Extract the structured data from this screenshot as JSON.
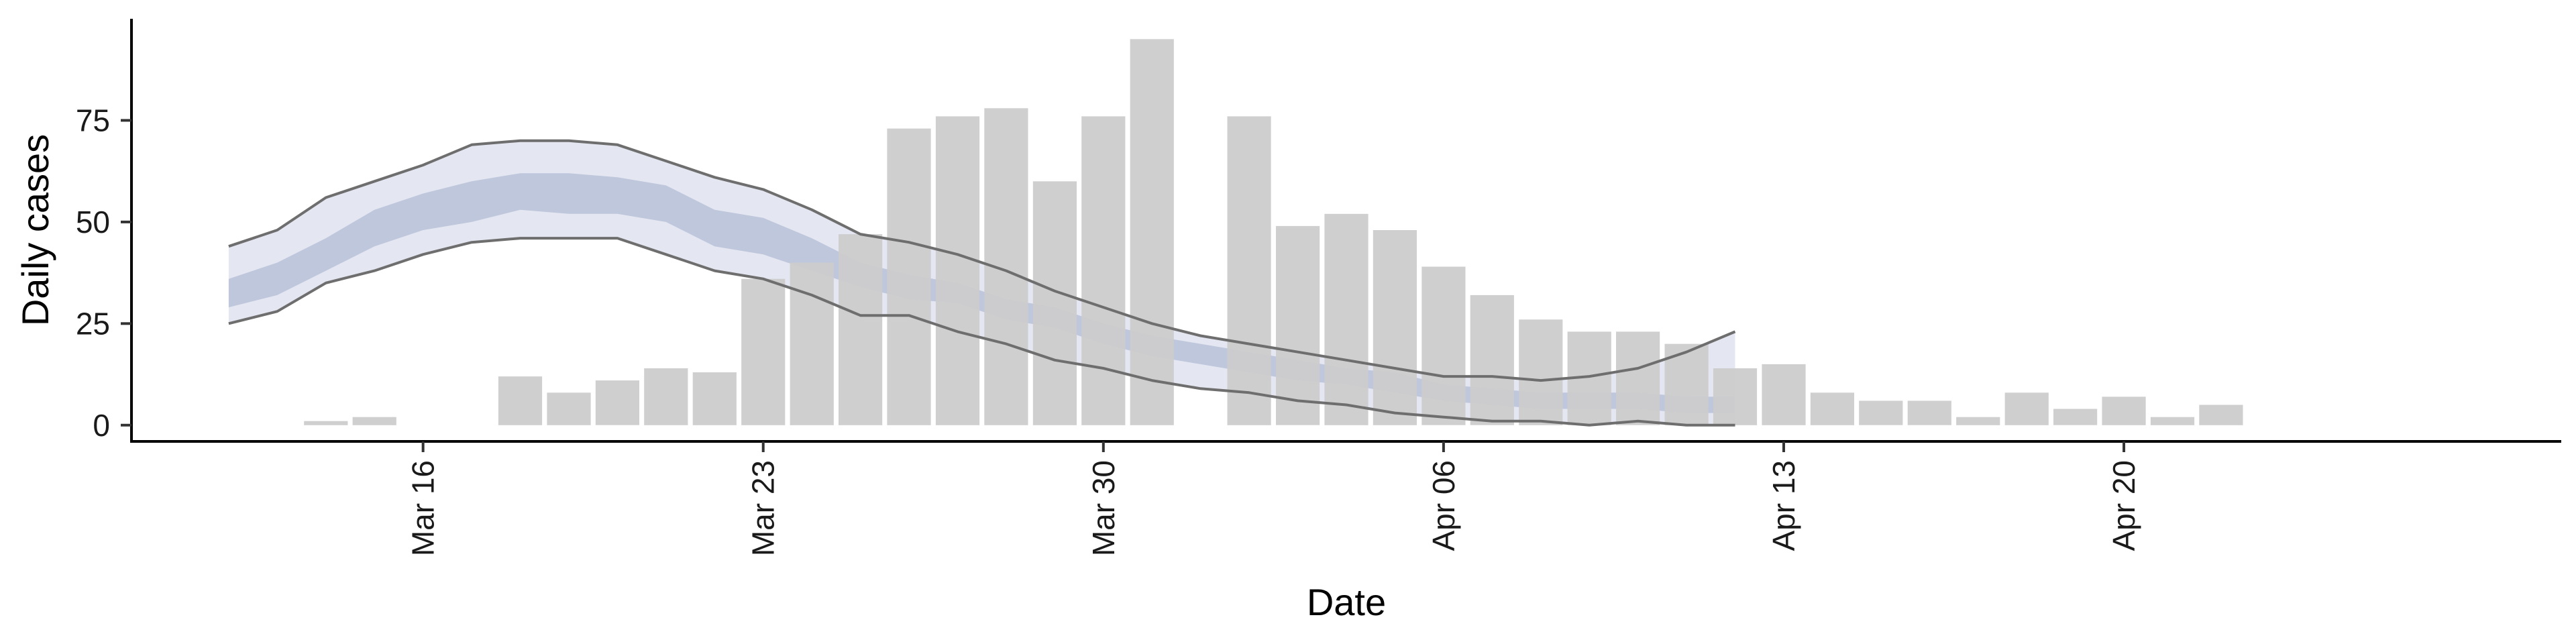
{
  "chart_data": {
    "type": "bar",
    "xlabel": "Date",
    "ylabel": "Daily cases",
    "xlim": [
      "2020-03-10",
      "2020-04-29"
    ],
    "ylim": [
      -4,
      100
    ],
    "grid": false,
    "legend": "none",
    "y_ticks": [
      0,
      25,
      50,
      75
    ],
    "x_ticks": [
      {
        "date": "2020-03-16",
        "label": "Mar 16"
      },
      {
        "date": "2020-03-23",
        "label": "Mar 23"
      },
      {
        "date": "2020-03-30",
        "label": "Mar 30"
      },
      {
        "date": "2020-04-06",
        "label": "Apr 06"
      },
      {
        "date": "2020-04-13",
        "label": "Apr 13"
      },
      {
        "date": "2020-04-20",
        "label": "Apr 20"
      }
    ],
    "bars": {
      "color": "#cccccc",
      "x": [
        "2020-03-13",
        "2020-03-14",
        "2020-03-15",
        "2020-03-16",
        "2020-03-17",
        "2020-03-18",
        "2020-03-19",
        "2020-03-20",
        "2020-03-21",
        "2020-03-22",
        "2020-03-23",
        "2020-03-24",
        "2020-03-25",
        "2020-03-26",
        "2020-03-27",
        "2020-03-28",
        "2020-03-29",
        "2020-03-30",
        "2020-03-31",
        "2020-04-01",
        "2020-04-02",
        "2020-04-03",
        "2020-04-04",
        "2020-04-05",
        "2020-04-06",
        "2020-04-07",
        "2020-04-08",
        "2020-04-09",
        "2020-04-10",
        "2020-04-11",
        "2020-04-12",
        "2020-04-13",
        "2020-04-14",
        "2020-04-15",
        "2020-04-16",
        "2020-04-17",
        "2020-04-18",
        "2020-04-19",
        "2020-04-20",
        "2020-04-21",
        "2020-04-22"
      ],
      "values": [
        0,
        1,
        2,
        0,
        0,
        12,
        8,
        11,
        14,
        13,
        36,
        40,
        47,
        73,
        76,
        78,
        60,
        76,
        95,
        0,
        76,
        49,
        52,
        48,
        39,
        32,
        26,
        23,
        23,
        20,
        14,
        15,
        8,
        6,
        6,
        2,
        8,
        4,
        7,
        2,
        5
      ]
    },
    "band": {
      "x": [
        "2020-03-12",
        "2020-03-13",
        "2020-03-14",
        "2020-03-15",
        "2020-03-16",
        "2020-03-17",
        "2020-03-18",
        "2020-03-19",
        "2020-03-20",
        "2020-03-21",
        "2020-03-22",
        "2020-03-23",
        "2020-03-24",
        "2020-03-25",
        "2020-03-26",
        "2020-03-27",
        "2020-03-28",
        "2020-03-29",
        "2020-03-30",
        "2020-03-31",
        "2020-04-01",
        "2020-04-02",
        "2020-04-03",
        "2020-04-04",
        "2020-04-05",
        "2020-04-06",
        "2020-04-07",
        "2020-04-08",
        "2020-04-09",
        "2020-04-10",
        "2020-04-11",
        "2020-04-12",
        "2020-04-13"
      ],
      "outer_upper": [
        44,
        48,
        56,
        60,
        64,
        69,
        70,
        70,
        69,
        65,
        61,
        58,
        53,
        47,
        45,
        42,
        38,
        33,
        29,
        25,
        22,
        20,
        18,
        16,
        14,
        12,
        12,
        11,
        12,
        14,
        18,
        23,
        null
      ],
      "outer_lower": [
        25,
        28,
        35,
        38,
        42,
        45,
        46,
        46,
        46,
        42,
        38,
        36,
        32,
        27,
        27,
        23,
        20,
        16,
        14,
        11,
        9,
        8,
        6,
        5,
        3,
        2,
        1,
        1,
        0,
        1,
        0,
        0,
        null
      ],
      "inner_upper": [
        36,
        40,
        46,
        53,
        57,
        60,
        62,
        62,
        61,
        59,
        53,
        51,
        46,
        40,
        37,
        35,
        31,
        29,
        25,
        22,
        20,
        18,
        16,
        14,
        13,
        10,
        9,
        8,
        8,
        8,
        7,
        7,
        null
      ],
      "inner_lower": [
        29,
        32,
        38,
        44,
        48,
        50,
        53,
        52,
        52,
        50,
        44,
        42,
        38,
        34,
        31,
        30,
        26,
        24,
        20,
        17,
        15,
        13,
        11,
        10,
        8,
        6,
        5,
        4,
        4,
        4,
        3,
        3,
        null
      ],
      "outer_color": "#dfe2ee",
      "inner_color": "#b9c1d8",
      "edge_color": "#6e6e6e"
    }
  }
}
